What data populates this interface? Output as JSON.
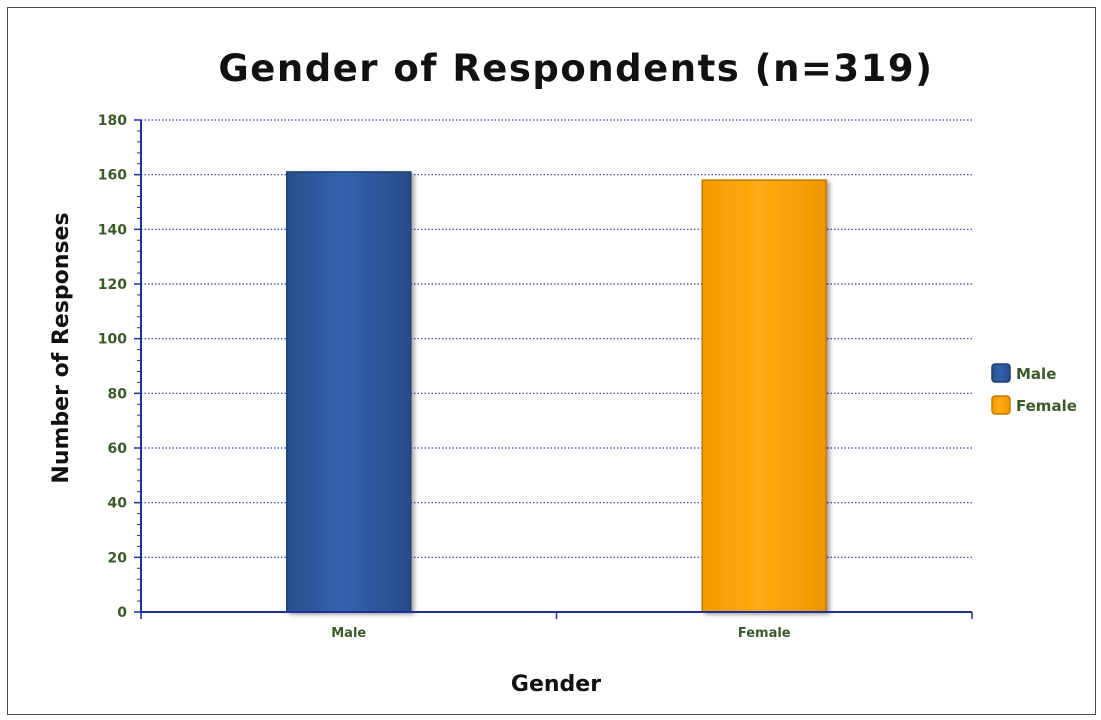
{
  "chart_data": {
    "type": "bar",
    "title": "Gender of Respondents (n=319)",
    "xlabel": "Gender",
    "ylabel": "Number of Responses",
    "categories": [
      "Male",
      "Female"
    ],
    "values": [
      161,
      158
    ],
    "ylim": [
      0,
      180
    ],
    "yticks": [
      "0",
      "20",
      "40",
      "60",
      "80",
      "100",
      "120",
      "140",
      "160",
      "180"
    ],
    "colors": [
      "#2f5b9e",
      "#ffa500"
    ],
    "grid": true,
    "legend": {
      "placement": "right",
      "entries": [
        "Male",
        "Female"
      ]
    }
  }
}
